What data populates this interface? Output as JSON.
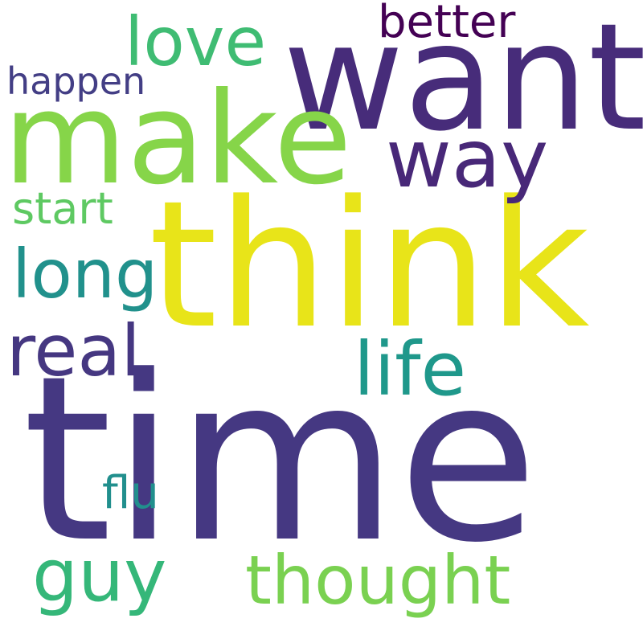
{
  "words": [
    {
      "key": "time",
      "text": "time",
      "color": "#453882"
    },
    {
      "key": "think",
      "text": "think",
      "color": "#e8e419"
    },
    {
      "key": "want",
      "text": "want",
      "color": "#472c7a"
    },
    {
      "key": "make",
      "text": "make",
      "color": "#86d549"
    },
    {
      "key": "way",
      "text": "way",
      "color": "#482878"
    },
    {
      "key": "love",
      "text": "love",
      "color": "#3fbc73"
    },
    {
      "key": "better",
      "text": "better",
      "color": "#440154"
    },
    {
      "key": "happen",
      "text": "happen",
      "color": "#433e85"
    },
    {
      "key": "start",
      "text": "start",
      "color": "#5ec962"
    },
    {
      "key": "long",
      "text": "long",
      "color": "#21918c"
    },
    {
      "key": "real",
      "text": "real",
      "color": "#453781"
    },
    {
      "key": "life",
      "text": "life",
      "color": "#1f988b"
    },
    {
      "key": "flu",
      "text": "flu",
      "color": "#218f8d"
    },
    {
      "key": "guy",
      "text": "guy",
      "color": "#35b779"
    },
    {
      "key": "thought",
      "text": "thought",
      "color": "#7ad151"
    }
  ]
}
